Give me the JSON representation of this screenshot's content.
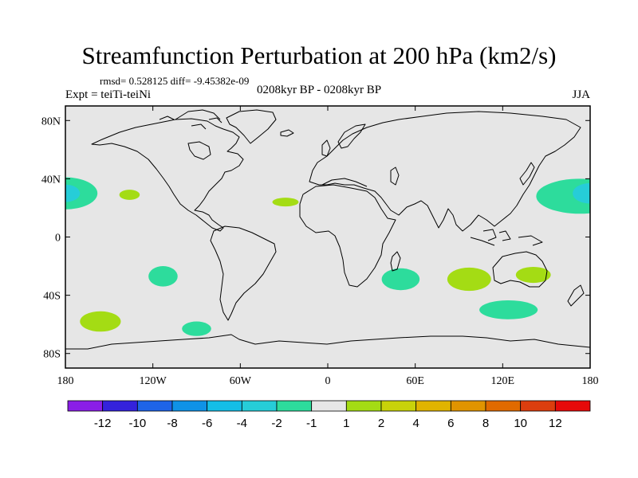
{
  "title": "Streamfunction Perturbation at 200 hPa (km2/s)",
  "stats": "rmsd= 0.528125 diff= -9.45382e-09",
  "expt": "Expt = teiTi-teiNi",
  "period": "0208kyr BP - 0208kyr BP",
  "season": "JJA",
  "colors": {
    "land_bg": "#e6e6e6",
    "coast": "#000000",
    "c_m1_m2": "#2ddc9c",
    "c_m2_m4": "#26cdd8",
    "c_1_2": "#a4dc14"
  },
  "chart_data": {
    "type": "map",
    "projection": "cylindrical-equidistant",
    "lon_range": [
      -180,
      180
    ],
    "lat_range": [
      -90,
      90
    ],
    "y_ticks": [
      {
        "value": 80,
        "label": "80N"
      },
      {
        "value": 40,
        "label": "40N"
      },
      {
        "value": 0,
        "label": "0"
      },
      {
        "value": -40,
        "label": "40S"
      },
      {
        "value": -80,
        "label": "80S"
      }
    ],
    "x_ticks": [
      {
        "value": -180,
        "label": "180"
      },
      {
        "value": -120,
        "label": "120W"
      },
      {
        "value": -60,
        "label": "60W"
      },
      {
        "value": 0,
        "label": "0"
      },
      {
        "value": 60,
        "label": "60E"
      },
      {
        "value": 120,
        "label": "120E"
      },
      {
        "value": 180,
        "label": "180"
      }
    ],
    "anomalies": [
      {
        "lon": -180,
        "lat": 30,
        "dlon": 22,
        "dlat": 11,
        "level": "c_m1_m2"
      },
      {
        "lon": -180,
        "lat": 30,
        "dlon": 10,
        "dlat": 6,
        "level": "c_m2_m4"
      },
      {
        "lon": 173,
        "lat": 28,
        "dlon": 30,
        "dlat": 12,
        "level": "c_m1_m2"
      },
      {
        "lon": 180,
        "lat": 30,
        "dlon": 12,
        "dlat": 7,
        "level": "c_m2_m4"
      },
      {
        "lon": -136,
        "lat": 29,
        "dlon": 7,
        "dlat": 3.5,
        "level": "c_1_2"
      },
      {
        "lon": -29,
        "lat": 24,
        "dlon": 9,
        "dlat": 3,
        "level": "c_1_2"
      },
      {
        "lon": -113,
        "lat": -27,
        "dlon": 10,
        "dlat": 7,
        "level": "c_m1_m2"
      },
      {
        "lon": -156,
        "lat": -58,
        "dlon": 14,
        "dlat": 7,
        "level": "c_1_2"
      },
      {
        "lon": -90,
        "lat": -63,
        "dlon": 10,
        "dlat": 5,
        "level": "c_m1_m2"
      },
      {
        "lon": 50,
        "lat": -29,
        "dlon": 13,
        "dlat": 7.5,
        "level": "c_m1_m2"
      },
      {
        "lon": 97,
        "lat": -29,
        "dlon": 15,
        "dlat": 8,
        "level": "c_1_2"
      },
      {
        "lon": 141,
        "lat": -26,
        "dlon": 12,
        "dlat": 5.5,
        "level": "c_1_2"
      },
      {
        "lon": 124,
        "lat": -50,
        "dlon": 20,
        "dlat": 6.5,
        "level": "c_m1_m2"
      }
    ],
    "colorbar": {
      "colors": [
        "#8a1ee6",
        "#3422dc",
        "#1e64e8",
        "#0f92e6",
        "#14bee6",
        "#26cdd8",
        "#2ddc9c",
        "#e6e6e6",
        "#a4dc14",
        "#c8d20a",
        "#e0b400",
        "#e09400",
        "#e06a00",
        "#dc3e0e",
        "#e60a0a"
      ],
      "labels": [
        "-12",
        "-10",
        "-8",
        "-6",
        "-4",
        "-2",
        "-1",
        "1",
        "2",
        "4",
        "6",
        "8",
        "10",
        "12"
      ]
    }
  }
}
